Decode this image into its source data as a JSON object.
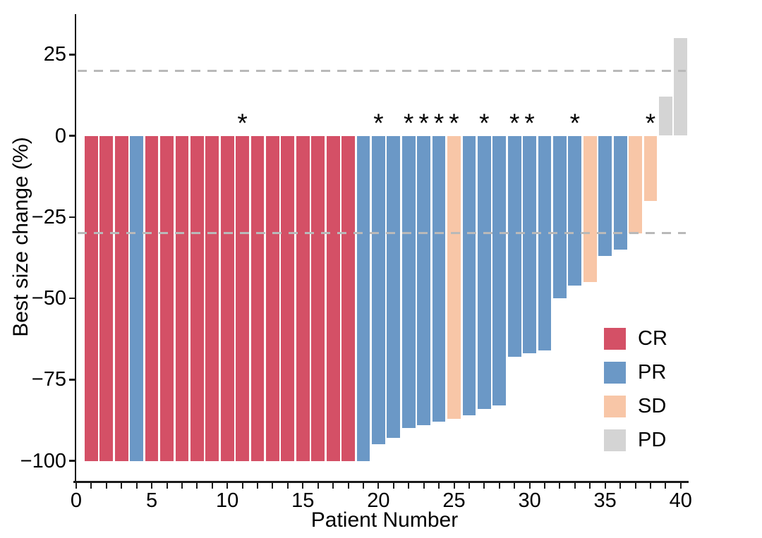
{
  "chart_data": {
    "type": "bar",
    "variant": "waterfall",
    "title": "",
    "xlabel": "Patient Number",
    "ylabel": "Best size change (%)",
    "xlim": [
      0,
      40.5
    ],
    "ylim": [
      -107,
      39
    ],
    "x_major_ticks": [
      0,
      5,
      10,
      15,
      20,
      25,
      30,
      35,
      40
    ],
    "x_minor_tick_step": 1,
    "y_ticks": [
      25,
      0,
      -25,
      -50,
      -75,
      -100
    ],
    "grid": false,
    "reference_lines": {
      "values": [
        20,
        -30
      ],
      "style": "dashed",
      "color": "#b9b9b9"
    },
    "annotation_symbol": "*",
    "response_colors": {
      "CR": "#d45066",
      "PR": "#6b98c6",
      "SD": "#f8c6a7",
      "PD": "#d4d4d4"
    },
    "legend": {
      "position": "right-inside",
      "items": [
        {
          "label": "CR",
          "color": "#d45066"
        },
        {
          "label": "PR",
          "color": "#6b98c6"
        },
        {
          "label": "SD",
          "color": "#f8c6a7"
        },
        {
          "label": "PD",
          "color": "#d4d4d4"
        }
      ]
    },
    "bars": [
      {
        "patient": 1,
        "value": -100,
        "response": "CR",
        "annotated": false
      },
      {
        "patient": 2,
        "value": -100,
        "response": "CR",
        "annotated": false
      },
      {
        "patient": 3,
        "value": -100,
        "response": "CR",
        "annotated": false
      },
      {
        "patient": 4,
        "value": -100,
        "response": "PR",
        "annotated": false
      },
      {
        "patient": 5,
        "value": -100,
        "response": "CR",
        "annotated": false
      },
      {
        "patient": 6,
        "value": -100,
        "response": "CR",
        "annotated": false
      },
      {
        "patient": 7,
        "value": -100,
        "response": "CR",
        "annotated": false
      },
      {
        "patient": 8,
        "value": -100,
        "response": "CR",
        "annotated": false
      },
      {
        "patient": 9,
        "value": -100,
        "response": "CR",
        "annotated": false
      },
      {
        "patient": 10,
        "value": -100,
        "response": "CR",
        "annotated": false
      },
      {
        "patient": 11,
        "value": -100,
        "response": "CR",
        "annotated": true
      },
      {
        "patient": 12,
        "value": -100,
        "response": "CR",
        "annotated": false
      },
      {
        "patient": 13,
        "value": -100,
        "response": "CR",
        "annotated": false
      },
      {
        "patient": 14,
        "value": -100,
        "response": "CR",
        "annotated": false
      },
      {
        "patient": 15,
        "value": -100,
        "response": "CR",
        "annotated": false
      },
      {
        "patient": 16,
        "value": -100,
        "response": "CR",
        "annotated": false
      },
      {
        "patient": 17,
        "value": -100,
        "response": "CR",
        "annotated": false
      },
      {
        "patient": 18,
        "value": -100,
        "response": "CR",
        "annotated": false
      },
      {
        "patient": 19,
        "value": -100,
        "response": "PR",
        "annotated": false
      },
      {
        "patient": 20,
        "value": -95,
        "response": "PR",
        "annotated": true
      },
      {
        "patient": 21,
        "value": -93,
        "response": "PR",
        "annotated": false
      },
      {
        "patient": 22,
        "value": -90,
        "response": "PR",
        "annotated": true
      },
      {
        "patient": 23,
        "value": -89,
        "response": "PR",
        "annotated": true
      },
      {
        "patient": 24,
        "value": -88,
        "response": "PR",
        "annotated": true
      },
      {
        "patient": 25,
        "value": -87,
        "response": "SD",
        "annotated": true
      },
      {
        "patient": 26,
        "value": -86,
        "response": "PR",
        "annotated": false
      },
      {
        "patient": 27,
        "value": -84,
        "response": "PR",
        "annotated": true
      },
      {
        "patient": 28,
        "value": -83,
        "response": "PR",
        "annotated": false
      },
      {
        "patient": 29,
        "value": -68,
        "response": "PR",
        "annotated": true
      },
      {
        "patient": 30,
        "value": -67,
        "response": "PR",
        "annotated": true
      },
      {
        "patient": 31,
        "value": -66,
        "response": "PR",
        "annotated": false
      },
      {
        "patient": 32,
        "value": -50,
        "response": "PR",
        "annotated": false
      },
      {
        "patient": 33,
        "value": -46,
        "response": "PR",
        "annotated": true
      },
      {
        "patient": 34,
        "value": -45,
        "response": "SD",
        "annotated": false
      },
      {
        "patient": 35,
        "value": -37,
        "response": "PR",
        "annotated": false
      },
      {
        "patient": 36,
        "value": -35,
        "response": "PR",
        "annotated": false
      },
      {
        "patient": 37,
        "value": -30,
        "response": "SD",
        "annotated": false
      },
      {
        "patient": 38,
        "value": -20,
        "response": "SD",
        "annotated": true
      },
      {
        "patient": 39,
        "value": 12,
        "response": "PD",
        "annotated": false
      },
      {
        "patient": 40,
        "value": 30,
        "response": "PD",
        "annotated": false
      }
    ]
  }
}
